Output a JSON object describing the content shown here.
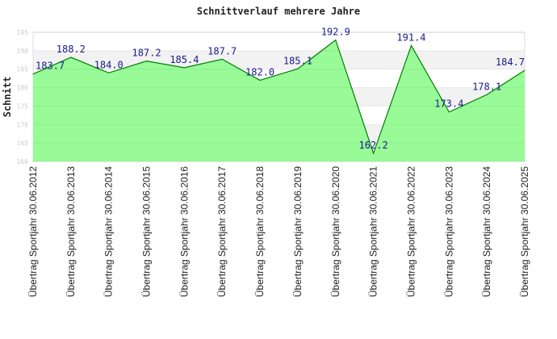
{
  "chart_data": {
    "type": "area",
    "title": "Schnittverlauf mehrere Jahre",
    "xlabel": "",
    "ylabel": "Schnitt",
    "ylim": [
      160,
      195
    ],
    "yticks": [
      160,
      165,
      170,
      175,
      180,
      185,
      190,
      195
    ],
    "grid": true,
    "categories": [
      "Übertrag Sportjahr 30.06.2012",
      "Übertrag Sportjahr 30.06.2013",
      "Übertrag Sportjahr 30.06.2014",
      "Übertrag Sportjahr 30.06.2015",
      "Übertrag Sportjahr 30.06.2016",
      "Übertrag Sportjahr 30.06.2017",
      "Übertrag Sportjahr 30.06.2018",
      "Übertrag Sportjahr 30.06.2019",
      "Übertrag Sportjahr 30.06.2020",
      "Übertrag Sportjahr 30.06.2021",
      "Übertrag Sportjahr 30.06.2022",
      "Übertrag Sportjahr 30.06.2023",
      "Übertrag Sportjahr 30.06.2024",
      "Übertrag Sportjahr 30.06.2025"
    ],
    "values": [
      183.7,
      188.2,
      184.0,
      187.2,
      185.4,
      187.7,
      182.0,
      185.1,
      192.9,
      162.2,
      191.4,
      173.4,
      178.1,
      184.7
    ],
    "value_labels": [
      "183.7",
      "188.2",
      "184.0",
      "187.2",
      "185.4",
      "187.7",
      "182.0",
      "185.1",
      "192.9",
      "162.2",
      "191.4",
      "173.4",
      "178.1",
      "184.7"
    ],
    "colors": {
      "fill": "#98fb98",
      "line": "#008000",
      "labels": "#1a1a8c"
    }
  }
}
